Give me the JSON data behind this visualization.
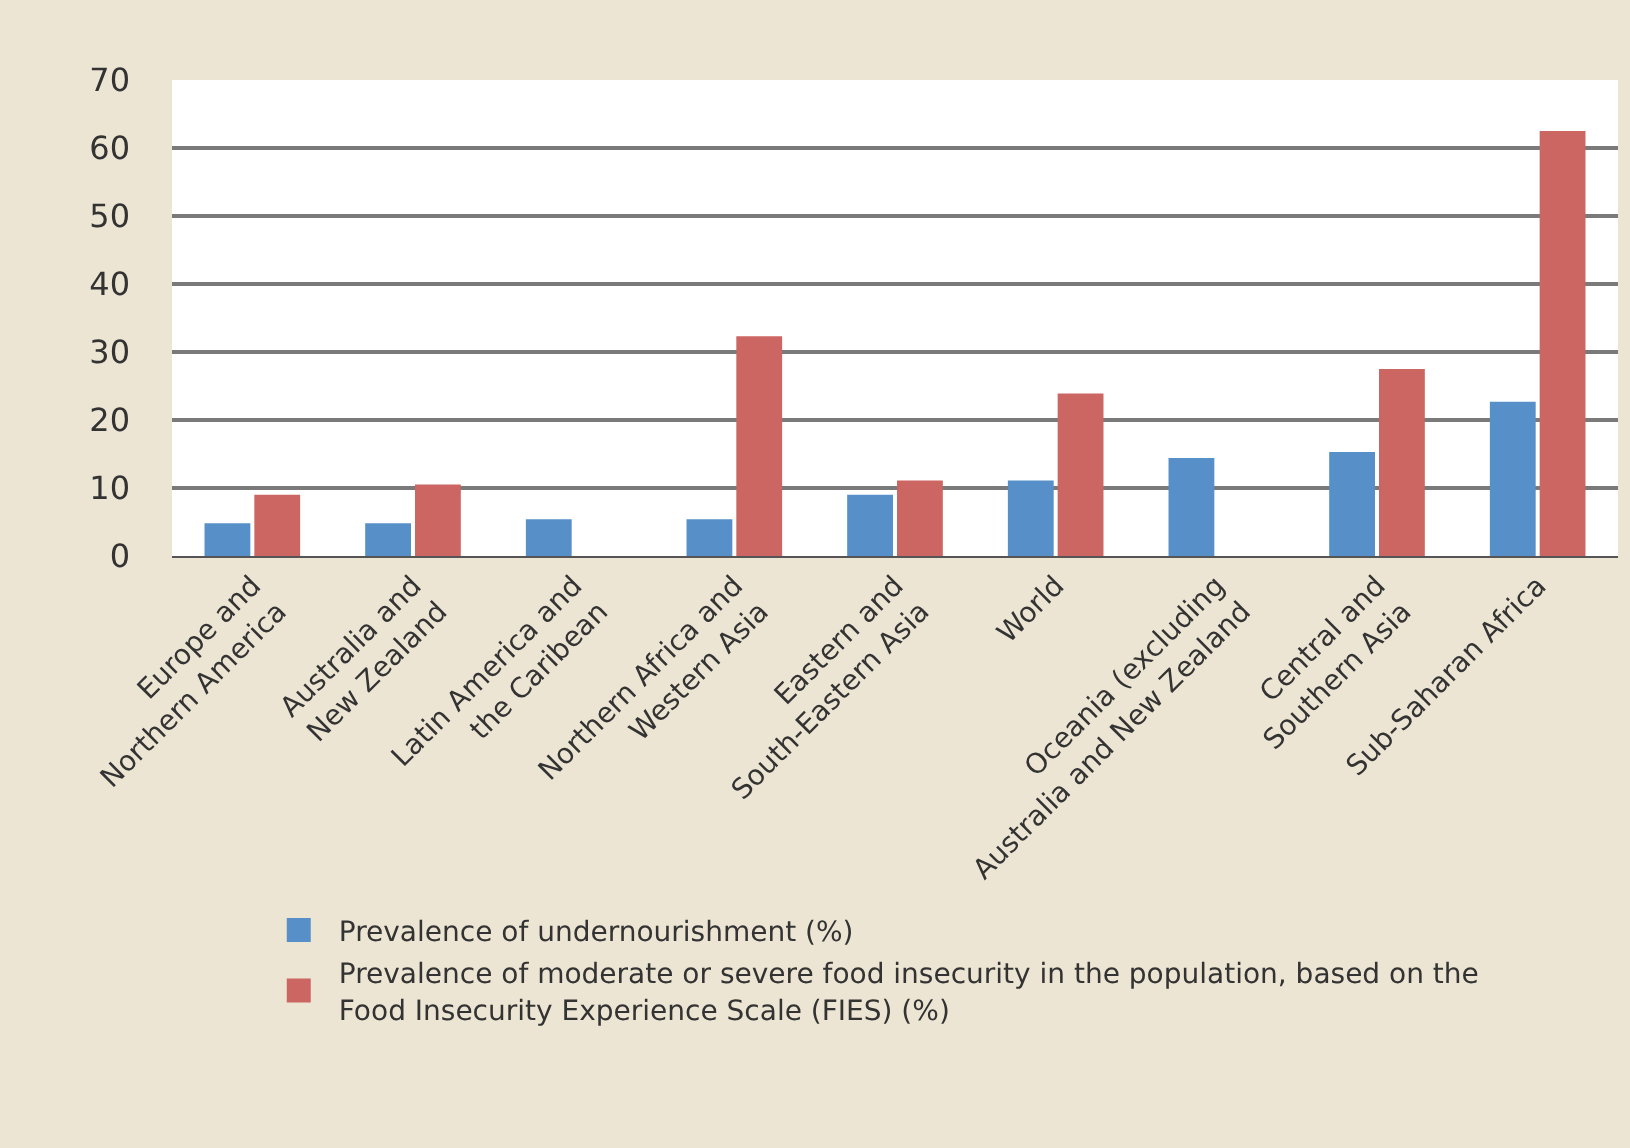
{
  "chart_data": {
    "type": "bar",
    "categories": [
      "Europe and\nNorthern America",
      "Australia and\nNew Zealand",
      "Latin America and\nthe Caribean",
      "Northern Africa and\nWestern Asia",
      "Eastern and\nSouth-Eastern Asia",
      "World",
      "Oceania (excluding\nAustralia and New Zealand",
      "Central and\nSouthern Asia",
      "Sub-Saharan Africa"
    ],
    "series": [
      {
        "name": "Prevalence of undernourishment (%)",
        "color": "#5790c9",
        "values": [
          4.8,
          4.8,
          5.4,
          5.4,
          9.0,
          11.1,
          14.4,
          15.3,
          22.7
        ]
      },
      {
        "name": "Prevalence of moderate or severe food insecurity in the population, based on the\nFood Insecurity Experience Scale (FIES) (%)",
        "color": "#cc6662",
        "values": [
          9.0,
          10.5,
          null,
          32.3,
          11.1,
          23.9,
          null,
          27.5,
          62.5
        ]
      }
    ],
    "ylim": [
      0,
      70
    ],
    "yticks": [
      0,
      10,
      20,
      30,
      40,
      50,
      60,
      70
    ],
    "grid": "y",
    "legend": "bottom"
  }
}
